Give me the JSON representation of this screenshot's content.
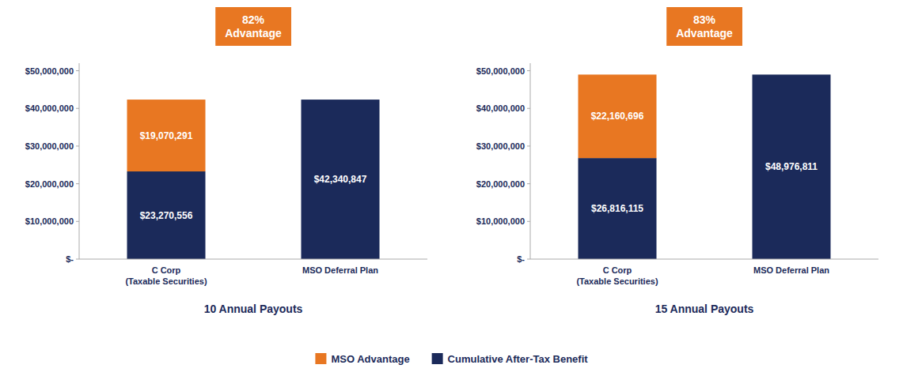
{
  "chart_data": [
    {
      "type": "bar",
      "stacked": true,
      "title": "82%\nAdvantage",
      "x_label": "10 Annual Payouts",
      "categories": [
        "C Corp\n(Taxable Securities)",
        "MSO Deferral Plan"
      ],
      "series": [
        {
          "name": "Cumulative After-Tax Benefit",
          "color": "#1B2A5A",
          "values": [
            23270556,
            42340847
          ],
          "value_labels": [
            "$23,270,556",
            "$42,340,847"
          ]
        },
        {
          "name": "MSO Advantage",
          "color": "#E87722",
          "values": [
            19070291,
            0
          ],
          "value_labels": [
            "$19,070,291",
            null
          ]
        }
      ],
      "ylim": [
        0,
        52000000
      ],
      "yticks": [
        {
          "value": 0,
          "label": "$-"
        },
        {
          "value": 10000000,
          "label": "$10,000,000"
        },
        {
          "value": 20000000,
          "label": "$20,000,000"
        },
        {
          "value": 30000000,
          "label": "$30,000,000"
        },
        {
          "value": 40000000,
          "label": "$40,000,000"
        },
        {
          "value": 50000000,
          "label": "$50,000,000"
        }
      ],
      "data_labels": true,
      "grid": false,
      "legend": "bottom"
    },
    {
      "type": "bar",
      "stacked": true,
      "title": "83%\nAdvantage",
      "x_label": "15 Annual Payouts",
      "categories": [
        "C Corp\n(Taxable Securities)",
        "MSO Deferral Plan"
      ],
      "series": [
        {
          "name": "Cumulative After-Tax Benefit",
          "color": "#1B2A5A",
          "values": [
            26816115,
            48976811
          ],
          "value_labels": [
            "$26,816,115",
            "$48,976,811"
          ]
        },
        {
          "name": "MSO Advantage",
          "color": "#E87722",
          "values": [
            22160696,
            0
          ],
          "value_labels": [
            "$22,160,696",
            null
          ]
        }
      ],
      "ylim": [
        0,
        52000000
      ],
      "yticks": [
        {
          "value": 0,
          "label": "$-"
        },
        {
          "value": 10000000,
          "label": "$10,000,000"
        },
        {
          "value": 20000000,
          "label": "$20,000,000"
        },
        {
          "value": 30000000,
          "label": "$30,000,000"
        },
        {
          "value": 40000000,
          "label": "$40,000,000"
        },
        {
          "value": 50000000,
          "label": "$50,000,000"
        }
      ],
      "data_labels": true,
      "grid": false,
      "legend": "bottom"
    }
  ]
}
